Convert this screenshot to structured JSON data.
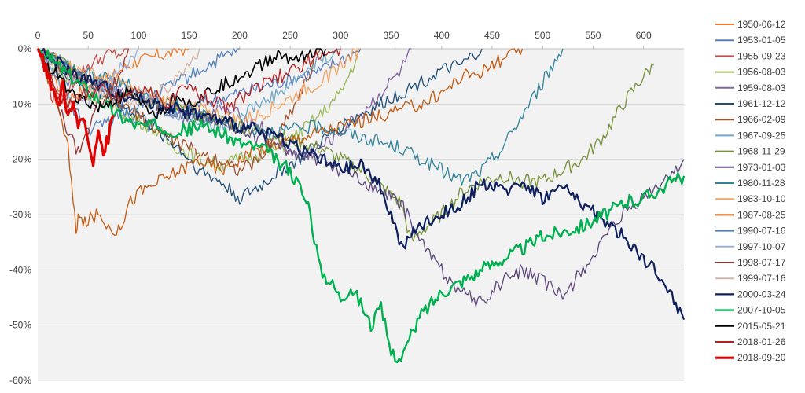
{
  "chart_data": {
    "type": "line",
    "title": "",
    "xlabel": "",
    "ylabel": "",
    "xlim": [
      0,
      640
    ],
    "ylim": [
      -60,
      0
    ],
    "x_ticks": [
      0,
      50,
      100,
      150,
      200,
      250,
      300,
      350,
      400,
      450,
      500,
      550,
      600
    ],
    "x_tick_labels": [
      "0",
      "50",
      "100",
      "150",
      "200",
      "250",
      "300",
      "350",
      "400",
      "450",
      "500",
      "550",
      "600"
    ],
    "x_axis_position": "top",
    "y_ticks": [
      0,
      -10,
      -20,
      -30,
      -40,
      -50,
      -60
    ],
    "y_tick_labels": [
      "0%",
      "-10%",
      "-20%",
      "-30%",
      "-40%",
      "-50%",
      "-60%"
    ],
    "grid": "horizontal",
    "legend": "right",
    "series": [
      {
        "name": "1950-06-12",
        "color": "#ED7D31",
        "width": 1.3,
        "x": [
          0,
          5,
          10,
          15,
          20,
          25,
          30,
          40,
          50,
          60,
          70,
          80,
          90,
          100,
          110,
          120,
          130,
          140,
          150
        ],
        "y": [
          0,
          -2,
          -5,
          -4,
          -7,
          -6,
          -9,
          -8,
          -7,
          -5,
          -6,
          -4,
          -3,
          -2,
          -2,
          -1,
          -1,
          0,
          0
        ]
      },
      {
        "name": "1953-01-05",
        "color": "#5B7DBE",
        "width": 1.3,
        "x": [
          0,
          10,
          20,
          30,
          40,
          50,
          60,
          70,
          80,
          90,
          100,
          110,
          120,
          140,
          160,
          180,
          200,
          220,
          240,
          260,
          280,
          300,
          310,
          320
        ],
        "y": [
          0,
          -2,
          -4,
          -6,
          -5,
          -8,
          -9,
          -7,
          -10,
          -12,
          -13,
          -14,
          -11,
          -12,
          -10,
          -9,
          -8,
          -7,
          -6,
          -5,
          -4,
          -2,
          -1,
          0
        ]
      },
      {
        "name": "1955-09-23",
        "color": "#C0504D",
        "width": 1.3,
        "x": [
          0,
          5,
          10,
          15,
          20,
          25,
          30,
          35,
          40,
          45,
          50,
          60,
          70,
          80,
          90
        ],
        "y": [
          0,
          -3,
          -6,
          -9,
          -7,
          -10,
          -8,
          -6,
          -5,
          -4,
          -3,
          -2,
          -1,
          -1,
          0
        ]
      },
      {
        "name": "1956-08-03",
        "color": "#9BBB59",
        "width": 1.3,
        "x": [
          0,
          10,
          20,
          30,
          40,
          50,
          60,
          70,
          80,
          90,
          100,
          110,
          120,
          130,
          140,
          150,
          160,
          180,
          200,
          220,
          240,
          260,
          280,
          300,
          320
        ],
        "y": [
          0,
          -2,
          -4,
          -6,
          -5,
          -8,
          -10,
          -9,
          -11,
          -12,
          -13,
          -14,
          -15,
          -17,
          -18,
          -19,
          -20,
          -21,
          -20,
          -19,
          -18,
          -15,
          -12,
          -8,
          0
        ]
      },
      {
        "name": "1959-08-03",
        "color": "#8064A2",
        "width": 1.3,
        "x": [
          0,
          20,
          40,
          60,
          80,
          100,
          120,
          140,
          160,
          180,
          200,
          220,
          240,
          260,
          280,
          300,
          320,
          340,
          360,
          370
        ],
        "y": [
          0,
          -3,
          -5,
          -6,
          -8,
          -9,
          -10,
          -12,
          -13,
          -11,
          -12,
          -14,
          -17,
          -20,
          -18,
          -15,
          -12,
          -8,
          -4,
          0
        ]
      },
      {
        "name": "1961-12-12",
        "color": "#1F4E79",
        "width": 1.3,
        "x": [
          0,
          20,
          40,
          60,
          80,
          100,
          120,
          140,
          160,
          180,
          200,
          220,
          240,
          260,
          280,
          300,
          320,
          340,
          360,
          380,
          400,
          420,
          440
        ],
        "y": [
          0,
          -4,
          -6,
          -8,
          -10,
          -12,
          -15,
          -18,
          -22,
          -24,
          -27,
          -25,
          -22,
          -20,
          -17,
          -14,
          -12,
          -10,
          -8,
          -6,
          -4,
          -3,
          0
        ]
      },
      {
        "name": "1966-02-09",
        "color": "#A0522D",
        "width": 1.3,
        "x": [
          0,
          20,
          40,
          60,
          80,
          100,
          120,
          140,
          160,
          180,
          200,
          220,
          240,
          260,
          280
        ],
        "y": [
          0,
          -3,
          -5,
          -8,
          -10,
          -12,
          -15,
          -17,
          -19,
          -20,
          -22,
          -20,
          -15,
          -8,
          0
        ]
      },
      {
        "name": "1967-09-25",
        "color": "#70A8C9",
        "width": 1.3,
        "x": [
          0,
          20,
          40,
          60,
          80,
          100,
          120,
          140,
          160,
          180,
          200,
          220,
          240,
          260,
          280,
          300
        ],
        "y": [
          0,
          -2,
          -4,
          -5,
          -7,
          -8,
          -10,
          -12,
          -13,
          -14,
          -12,
          -10,
          -8,
          -5,
          -2,
          0
        ]
      },
      {
        "name": "1968-11-29",
        "color": "#76923C",
        "width": 1.3,
        "x": [
          0,
          40,
          80,
          120,
          160,
          200,
          240,
          280,
          320,
          360,
          370,
          380,
          400,
          420,
          440,
          460,
          480,
          500,
          520,
          540,
          560,
          580,
          600,
          610
        ],
        "y": [
          0,
          -4,
          -8,
          -10,
          -12,
          -14,
          -16,
          -18,
          -22,
          -28,
          -35,
          -33,
          -30,
          -26,
          -24,
          -23,
          -24,
          -24,
          -22,
          -20,
          -16,
          -10,
          -5,
          -3
        ]
      },
      {
        "name": "1973-01-03",
        "color": "#5F497A",
        "width": 1.3,
        "x": [
          0,
          40,
          80,
          120,
          160,
          200,
          240,
          280,
          320,
          360,
          380,
          400,
          420,
          440,
          460,
          480,
          500,
          520,
          540,
          560,
          580,
          600,
          620,
          640
        ],
        "y": [
          0,
          -5,
          -8,
          -10,
          -12,
          -15,
          -18,
          -20,
          -24,
          -28,
          -35,
          -40,
          -44,
          -46,
          -42,
          -40,
          -42,
          -45,
          -40,
          -35,
          -30,
          -27,
          -24,
          -20
        ]
      },
      {
        "name": "1980-11-28",
        "color": "#31849B",
        "width": 1.3,
        "x": [
          0,
          40,
          80,
          120,
          160,
          200,
          240,
          280,
          320,
          360,
          380,
          400,
          420,
          440,
          460,
          480,
          500,
          520
        ],
        "y": [
          0,
          -4,
          -6,
          -9,
          -12,
          -14,
          -15,
          -14,
          -16,
          -18,
          -20,
          -22,
          -24,
          -22,
          -18,
          -12,
          -6,
          0
        ]
      },
      {
        "name": "1983-10-10",
        "color": "#F4A460",
        "width": 1.3,
        "x": [
          0,
          20,
          40,
          60,
          80,
          100,
          120,
          140,
          160,
          180,
          200,
          220,
          240,
          260,
          280,
          300,
          320
        ],
        "y": [
          0,
          -2,
          -4,
          -5,
          -6,
          -8,
          -9,
          -10,
          -11,
          -12,
          -13,
          -12,
          -10,
          -8,
          -6,
          -3,
          0
        ]
      },
      {
        "name": "1987-08-25",
        "color": "#C55A11",
        "width": 1.3,
        "x": [
          0,
          10,
          20,
          30,
          35,
          38,
          40,
          45,
          50,
          60,
          70,
          80,
          90,
          100,
          120,
          140,
          160,
          180,
          200,
          220,
          240,
          260,
          280,
          300,
          320,
          340,
          360,
          380,
          400,
          420,
          440,
          460,
          480
        ],
        "y": [
          0,
          -5,
          -10,
          -18,
          -28,
          -33,
          -30,
          -32,
          -31,
          -30,
          -32,
          -33,
          -28,
          -26,
          -24,
          -22,
          -20,
          -22,
          -20,
          -18,
          -17,
          -16,
          -15,
          -14,
          -13,
          -12,
          -11,
          -10,
          -8,
          -5,
          -4,
          -2,
          0
        ]
      },
      {
        "name": "1990-07-16",
        "color": "#4F81BD",
        "width": 1.3,
        "x": [
          0,
          10,
          20,
          30,
          40,
          50,
          60,
          70,
          80,
          90,
          100,
          110,
          120,
          130,
          140,
          150,
          160,
          180,
          200
        ],
        "y": [
          0,
          -3,
          -6,
          -9,
          -12,
          -15,
          -14,
          -13,
          -12,
          -11,
          -10,
          -9,
          -8,
          -7,
          -6,
          -5,
          -4,
          -2,
          0
        ]
      },
      {
        "name": "1997-10-07",
        "color": "#95B3D7",
        "width": 1.3,
        "x": [
          0,
          10,
          20,
          30,
          40,
          50,
          60,
          70,
          80,
          90,
          100
        ],
        "y": [
          0,
          -3,
          -6,
          -8,
          -10,
          -9,
          -8,
          -6,
          -4,
          -2,
          0
        ]
      },
      {
        "name": "1998-07-17",
        "color": "#943634",
        "width": 1.3,
        "x": [
          0,
          10,
          20,
          30,
          40,
          50,
          60,
          70,
          80,
          90
        ],
        "y": [
          0,
          -5,
          -10,
          -15,
          -19,
          -15,
          -10,
          -8,
          -5,
          0
        ]
      },
      {
        "name": "1999-07-16",
        "color": "#D7B5A6",
        "width": 1.3,
        "x": [
          0,
          20,
          40,
          60,
          80,
          100,
          120,
          140,
          160
        ],
        "y": [
          0,
          -3,
          -6,
          -8,
          -10,
          -9,
          -8,
          -5,
          0
        ]
      },
      {
        "name": "2000-03-24",
        "color": "#0D1F5C",
        "width": 2.2,
        "x": [
          0,
          40,
          80,
          120,
          160,
          200,
          240,
          280,
          300,
          320,
          340,
          350,
          360,
          380,
          400,
          420,
          440,
          460,
          480,
          500,
          520,
          540,
          560,
          580,
          600,
          620,
          640
        ],
        "y": [
          0,
          -5,
          -8,
          -10,
          -12,
          -14,
          -16,
          -20,
          -22,
          -21,
          -25,
          -30,
          -36,
          -32,
          -30,
          -28,
          -24,
          -26,
          -24,
          -27,
          -25,
          -28,
          -31,
          -34,
          -38,
          -42,
          -49
        ]
      },
      {
        "name": "2007-10-05",
        "color": "#00B050",
        "width": 2.4,
        "x": [
          0,
          20,
          40,
          60,
          80,
          100,
          120,
          140,
          160,
          180,
          200,
          220,
          230,
          240,
          250,
          260,
          270,
          280,
          290,
          300,
          310,
          320,
          330,
          340,
          350,
          360,
          370,
          380,
          400,
          420,
          440,
          460,
          480,
          500,
          520,
          540,
          560,
          580,
          600,
          620,
          640
        ],
        "y": [
          0,
          -3,
          -6,
          -9,
          -12,
          -14,
          -14,
          -15,
          -14,
          -15,
          -17,
          -18,
          -19,
          -21,
          -22,
          -25,
          -30,
          -40,
          -42,
          -45,
          -43,
          -46,
          -50,
          -47,
          -55,
          -56,
          -52,
          -48,
          -44,
          -42,
          -40,
          -38,
          -36,
          -34,
          -33,
          -32,
          -30,
          -28,
          -27,
          -25,
          -23
        ]
      },
      {
        "name": "2015-05-21",
        "color": "#000000",
        "width": 1.6,
        "x": [
          0,
          10,
          20,
          30,
          40,
          50,
          60,
          70,
          80,
          90,
          100,
          110,
          120,
          130,
          140,
          150,
          160,
          170,
          180,
          190,
          200,
          210,
          220,
          230,
          240,
          250,
          260,
          270,
          280,
          285
        ],
        "y": [
          0,
          -3,
          -5,
          -7,
          -9,
          -10,
          -11,
          -10,
          -9,
          -8,
          -10,
          -11,
          -12,
          -10,
          -8,
          -10,
          -9,
          -8,
          -7,
          -6,
          -5,
          -4,
          -3,
          -2,
          -1,
          -2,
          -1,
          -1,
          0,
          0
        ]
      },
      {
        "name": "2018-01-26",
        "color": "#B22222",
        "width": 1.3,
        "x": [
          0,
          10,
          20,
          30,
          40,
          50,
          60,
          70,
          80,
          90,
          100,
          110,
          120,
          130,
          140,
          150,
          160,
          170,
          180,
          190,
          200,
          210,
          220,
          230,
          240,
          250,
          260,
          270,
          280,
          290,
          300
        ],
        "y": [
          0,
          -4,
          -8,
          -10,
          -9,
          -8,
          -7,
          -8,
          -9,
          -8,
          -7,
          -8,
          -9,
          -10,
          -8,
          -7,
          -8,
          -9,
          -10,
          -11,
          -9,
          -8,
          -7,
          -6,
          -5,
          -4,
          -3,
          -2,
          -1,
          -1,
          0
        ]
      },
      {
        "name": "2018-09-20",
        "color": "#E00000",
        "width": 3.2,
        "x": [
          0,
          5,
          10,
          15,
          20,
          25,
          30,
          35,
          40,
          45,
          50,
          55,
          60,
          65,
          70,
          75
        ],
        "y": [
          0,
          -2,
          -5,
          -8,
          -10,
          -7,
          -12,
          -10,
          -15,
          -12,
          -17,
          -20,
          -14,
          -19,
          -16,
          -12
        ]
      }
    ]
  }
}
